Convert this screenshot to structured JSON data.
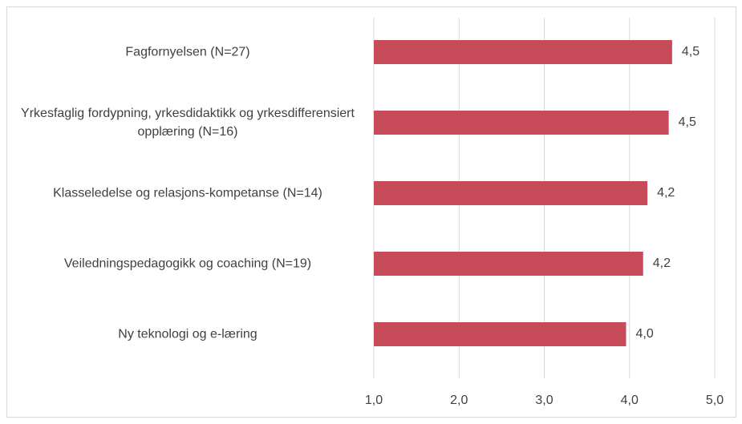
{
  "chart_data": {
    "type": "bar",
    "orientation": "horizontal",
    "categories": [
      "Fagfornyelsen (N=27)",
      "Yrkesfaglig fordypning, yrkesdidaktikk og yrkesdifferensiert opplæring (N=16)",
      "Klasseledelse og relasjons-kompetanse (N=14)",
      "Veiledningspedagogikk og coaching (N=19)",
      "Ny teknologi og e-læring"
    ],
    "values": [
      4.5,
      4.46,
      4.21,
      4.16,
      3.96
    ],
    "value_labels": [
      "4,5",
      "4,5",
      "4,2",
      "4,2",
      "4,0"
    ],
    "color": "#c84b5a",
    "xlim": [
      1,
      5
    ],
    "xticks": [
      {
        "value": 1,
        "label": "1,0"
      },
      {
        "value": 2,
        "label": "2,0"
      },
      {
        "value": 3,
        "label": "3,0"
      },
      {
        "value": 4,
        "label": "4,0"
      },
      {
        "value": 5,
        "label": "5,0"
      }
    ],
    "grid": true
  }
}
